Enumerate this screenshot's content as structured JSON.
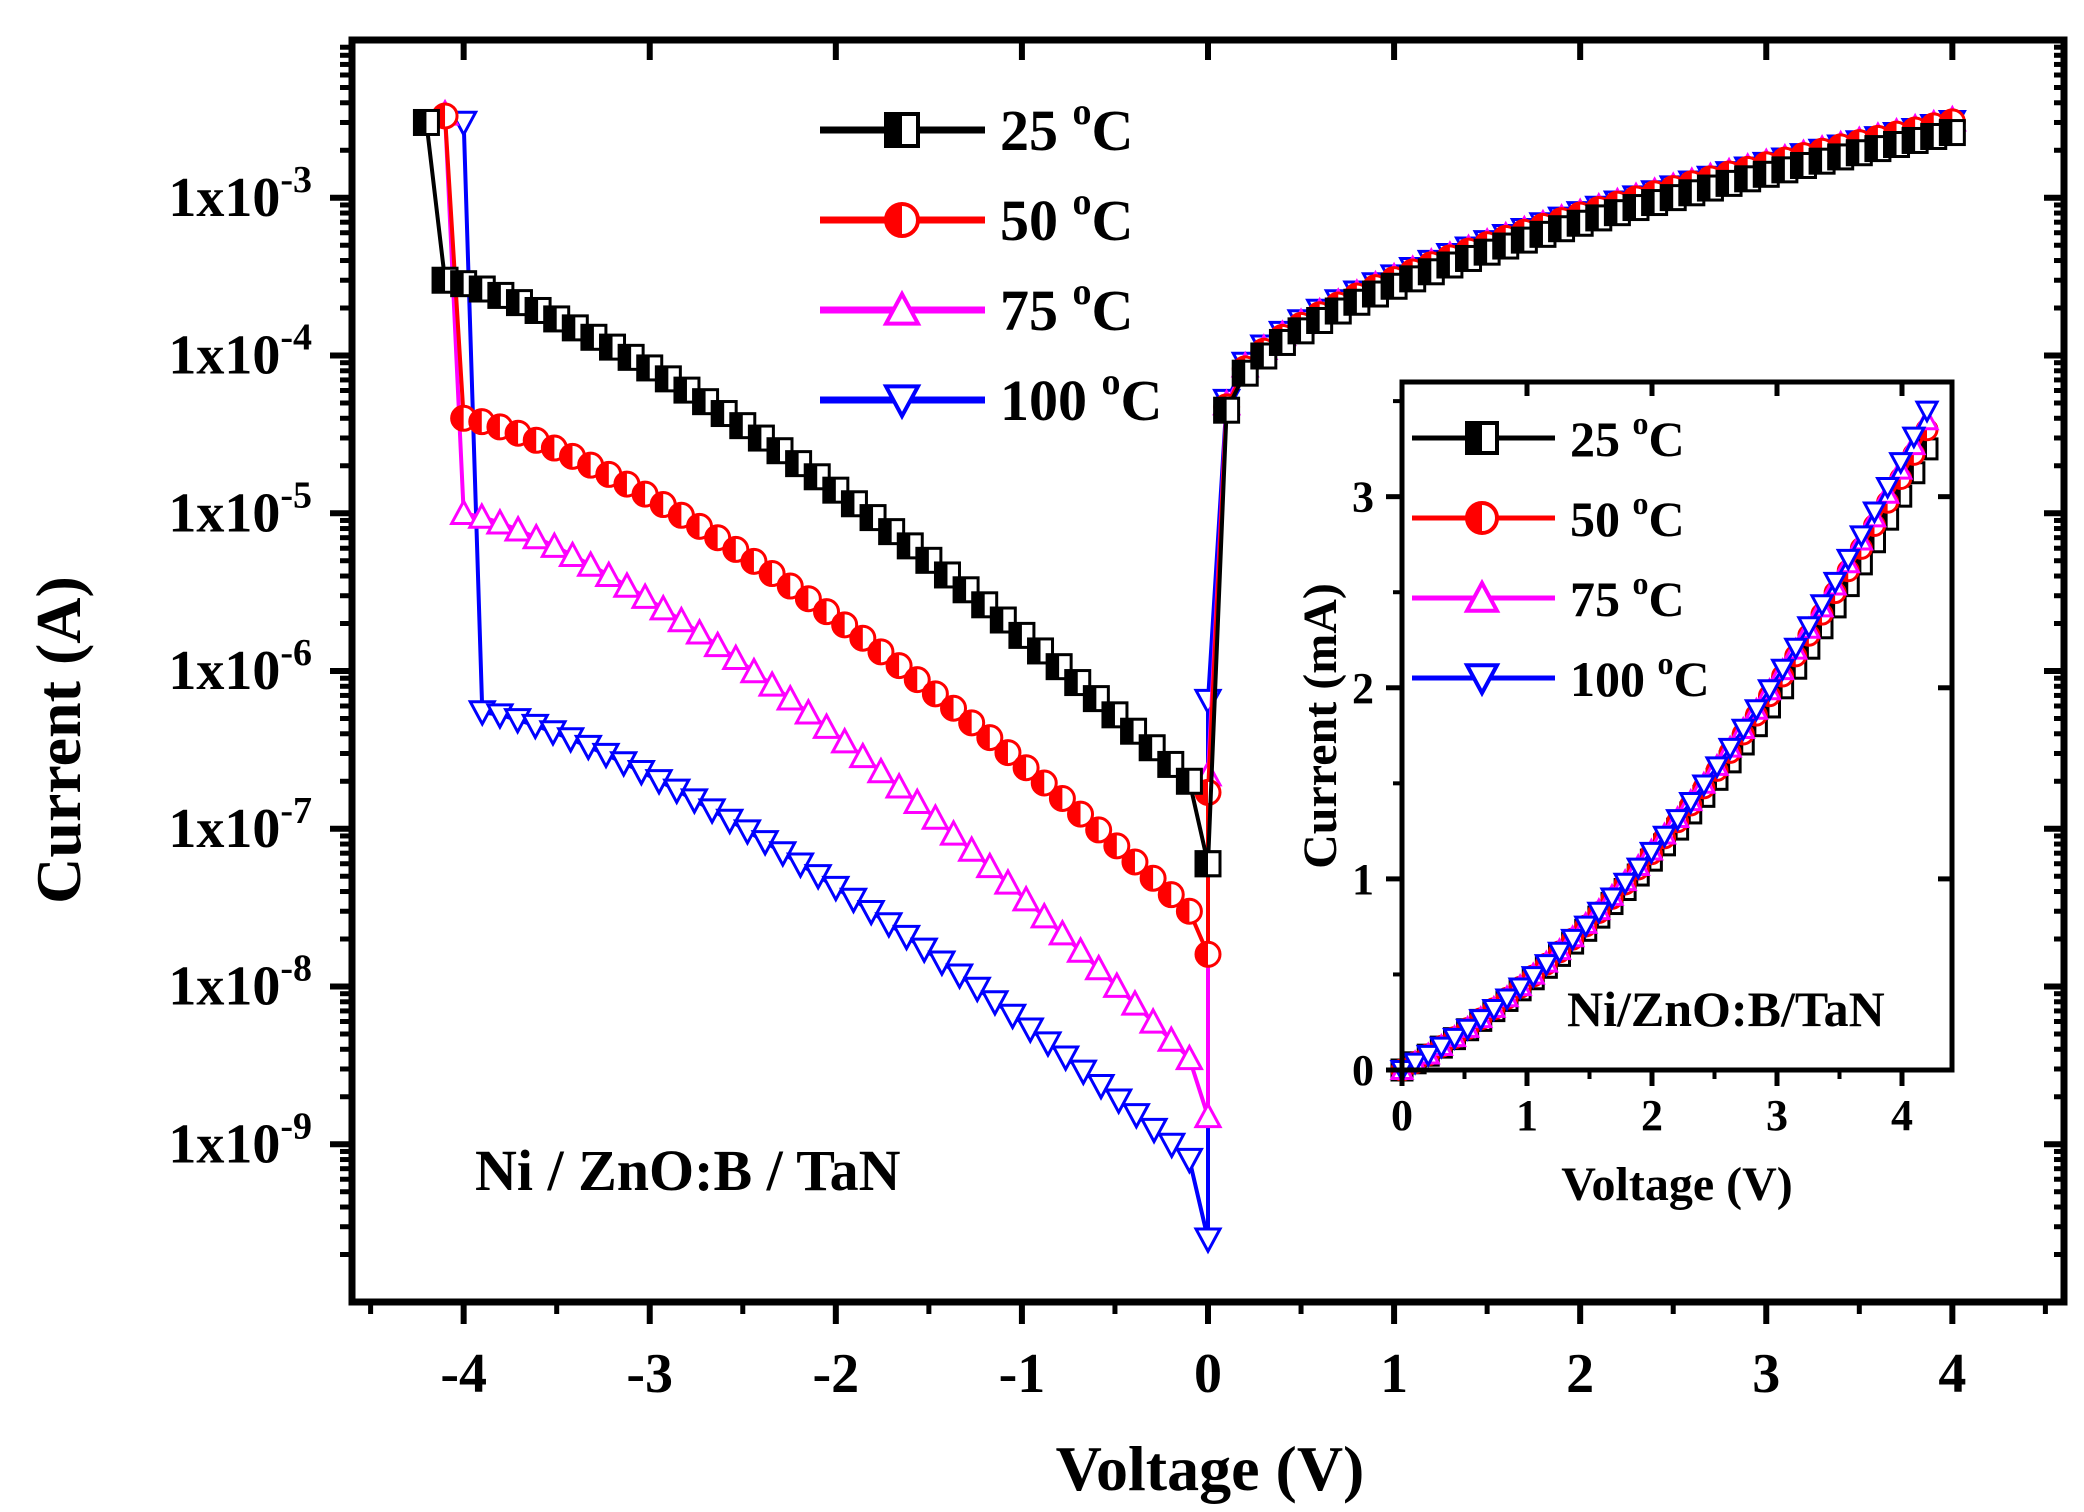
{
  "chart_data": [
    {
      "type": "line",
      "id": "main",
      "xlabel": "Voltage (V)",
      "ylabel": "Current (A)",
      "yscale": "log",
      "xlim": [
        -4.6,
        4.6
      ],
      "ylim": [
        1e-10,
        0.01
      ],
      "x_ticks": [
        -4,
        -3,
        -2,
        -1,
        0,
        1,
        2,
        3,
        4
      ],
      "x_tick_labels": [
        "-4",
        "-3",
        "-2",
        "-1",
        "0",
        "1",
        "2",
        "3",
        "4"
      ],
      "y_tick_labels": [
        {
          "value": 1e-09,
          "base": "1x10",
          "exp": "-9"
        },
        {
          "value": 1e-08,
          "base": "1x10",
          "exp": "-8"
        },
        {
          "value": 1e-07,
          "base": "1x10",
          "exp": "-7"
        },
        {
          "value": 1e-06,
          "base": "1x10",
          "exp": "-6"
        },
        {
          "value": 1e-05,
          "base": "1x10",
          "exp": "-5"
        },
        {
          "value": 0.0001,
          "base": "1x10",
          "exp": "-4"
        },
        {
          "value": 0.001,
          "base": "1x10",
          "exp": "-3"
        }
      ],
      "annotation": "Ni / ZnO:B / TaN",
      "legend_position": "top-center",
      "series": [
        {
          "name": "25 °C",
          "label_main": "25 ",
          "label_sup": "o",
          "label_unit": "C",
          "color": "#000000",
          "marker": "square",
          "neg": {
            "v_start": -4.2,
            "v_jump": -4.1,
            "i_top": 0.003,
            "i_start": 0.0003,
            "i_near0": 2e-07,
            "i_zero": 6e-08
          },
          "pos": {
            "v_first": 0.0,
            "i_first": 6e-08,
            "i_max": 0.0029
          }
        },
        {
          "name": "50 °C",
          "label_main": "50 ",
          "label_sup": "o",
          "label_unit": "C",
          "color": "#ff0000",
          "marker": "circle",
          "neg": {
            "v_start": -4.1,
            "v_jump": -4.0,
            "i_top": 0.0033,
            "i_start": 4e-05,
            "i_near0": 3e-08,
            "i_zero": 1.6e-08
          },
          "pos": {
            "v_first": 0.0,
            "i_first": 1.7e-07,
            "i_max": 0.0034
          }
        },
        {
          "name": "75 °C",
          "label_main": "75 ",
          "label_sup": "o",
          "label_unit": "C",
          "color": "#ff00ff",
          "marker": "triangle-up",
          "neg": {
            "v_start": -4.1,
            "v_jump": -4.0,
            "i_top": 0.0034,
            "i_start": 1e-05,
            "i_near0": 3.5e-09,
            "i_zero": 1.5e-09
          },
          "pos": {
            "v_first": 0.0,
            "i_first": 2.2e-07,
            "i_max": 0.0035
          }
        },
        {
          "name": "100 °C",
          "label_main": "100 ",
          "label_sup": "o",
          "label_unit": "C",
          "color": "#0000ff",
          "marker": "triangle-down",
          "neg": {
            "v_start": -4.0,
            "v_jump": -3.9,
            "i_top": 0.003,
            "i_start": 5.5e-07,
            "i_near0": 8e-10,
            "i_zero": 2.5e-10
          },
          "pos": {
            "v_first": 0.0,
            "i_first": 6.5e-07,
            "i_max": 0.0034
          }
        }
      ]
    },
    {
      "type": "line",
      "id": "inset",
      "xlabel": "Voltage (V)",
      "ylabel": "Current (mA)",
      "xlim": [
        0,
        4.4
      ],
      "ylim": [
        0,
        3.6
      ],
      "x_ticks": [
        0,
        1,
        2,
        3,
        4
      ],
      "x_tick_labels": [
        "0",
        "1",
        "2",
        "3",
        "4"
      ],
      "y_ticks": [
        0,
        1,
        2,
        3
      ],
      "y_tick_labels": [
        "0",
        "1",
        "2",
        "3"
      ],
      "annotation": "Ni/ZnO:B/TaN",
      "legend_position": "top-left",
      "series": [
        {
          "name": "25 °C",
          "label_main": "25 ",
          "label_sup": "o",
          "label_unit": "C",
          "color": "#000000",
          "marker": "square",
          "v_max": 4.2,
          "i_max": 3.25
        },
        {
          "name": "50 °C",
          "label_main": "50 ",
          "label_sup": "o",
          "label_unit": "C",
          "color": "#ff0000",
          "marker": "circle",
          "v_max": 4.2,
          "i_max": 3.35
        },
        {
          "name": "75 °C",
          "label_main": "75 ",
          "label_sup": "o",
          "label_unit": "C",
          "color": "#ff00ff",
          "marker": "triangle-up",
          "v_max": 4.2,
          "i_max": 3.4
        },
        {
          "name": "100 °C",
          "label_main": "100 ",
          "label_sup": "o",
          "label_unit": "C",
          "color": "#0000ff",
          "marker": "triangle-down",
          "v_max": 4.2,
          "i_max": 3.45
        }
      ]
    }
  ]
}
